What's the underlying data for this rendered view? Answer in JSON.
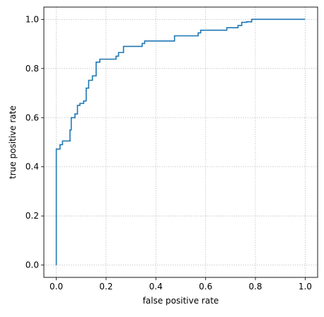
{
  "chart_data": {
    "type": "line",
    "title": "",
    "xlabel": "false positive rate",
    "ylabel": "true positive rate",
    "xlim": [
      -0.05,
      1.05
    ],
    "ylim": [
      -0.05,
      1.05
    ],
    "xticks": [
      0.0,
      0.2,
      0.4,
      0.6,
      0.8,
      1.0
    ],
    "yticks": [
      0.0,
      0.2,
      0.4,
      0.6,
      0.8,
      1.0
    ],
    "xtick_labels": [
      "0.0",
      "0.2",
      "0.4",
      "0.6",
      "0.8",
      "1.0"
    ],
    "ytick_labels": [
      "0.0",
      "0.2",
      "0.4",
      "0.6",
      "0.8",
      "1.0"
    ],
    "grid": true,
    "line_style": "steps",
    "color": "#1f77b4",
    "series": [
      {
        "x": [
          0.0,
          0.0,
          0.015,
          0.015,
          0.025,
          0.025,
          0.035,
          0.035,
          0.055,
          0.055,
          0.06,
          0.06,
          0.075,
          0.075,
          0.085,
          0.085,
          0.095,
          0.095,
          0.11,
          0.11,
          0.12,
          0.12,
          0.13,
          0.13,
          0.145,
          0.145,
          0.16,
          0.16,
          0.175,
          0.175,
          0.24,
          0.24,
          0.25,
          0.25,
          0.27,
          0.27,
          0.345,
          0.345,
          0.355,
          0.355,
          0.475,
          0.475,
          0.57,
          0.57,
          0.58,
          0.58,
          0.685,
          0.685,
          0.73,
          0.73,
          0.745,
          0.745,
          0.765,
          0.765,
          0.785,
          0.785,
          1.0
        ],
        "y": [
          0.0,
          0.472,
          0.472,
          0.49,
          0.49,
          0.505,
          0.505,
          0.505,
          0.505,
          0.55,
          0.55,
          0.6,
          0.6,
          0.615,
          0.615,
          0.65,
          0.65,
          0.658,
          0.658,
          0.668,
          0.668,
          0.72,
          0.72,
          0.752,
          0.752,
          0.77,
          0.77,
          0.826,
          0.826,
          0.838,
          0.838,
          0.85,
          0.85,
          0.865,
          0.865,
          0.89,
          0.89,
          0.902,
          0.902,
          0.912,
          0.912,
          0.933,
          0.933,
          0.945,
          0.945,
          0.956,
          0.956,
          0.966,
          0.966,
          0.975,
          0.975,
          0.988,
          0.988,
          0.99,
          0.99,
          1.0,
          1.0
        ]
      }
    ]
  }
}
